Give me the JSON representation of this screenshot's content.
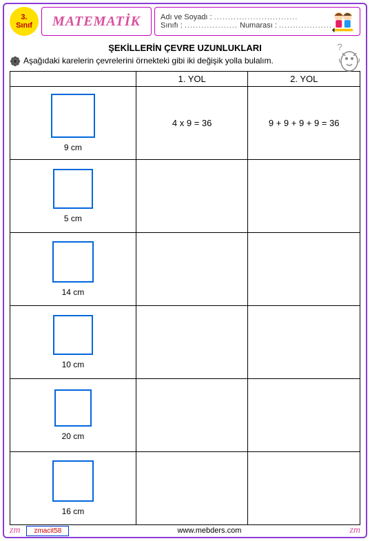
{
  "header": {
    "grade_line1": "3.",
    "grade_line2": "Sınıf",
    "subject": "MATEMATİK",
    "name_label": "Adı ve Soyadı : ",
    "name_dots": "..............................",
    "class_label": "Sınıfı : ",
    "class_dots": "...................",
    "number_label": " Numarası : ",
    "number_dots": "..................."
  },
  "worksheet": {
    "title": "ŞEKİLLERİN ÇEVRE UZUNLUKLARI",
    "instruction": "Aşağıdaki  karelerin çevrelerini örnekteki gibi  iki değişik yolla bulalım.",
    "col_shape": "",
    "col_yol1": "1. YOL",
    "col_yol2": "2. YOL",
    "rows": [
      {
        "side": "9 cm",
        "sq_size": 64,
        "yol1": "4 x 9 = 36",
        "yol2": "9 + 9 + 9 + 9 = 36"
      },
      {
        "side": "5 cm",
        "sq_size": 58,
        "yol1": "",
        "yol2": ""
      },
      {
        "side": "14 cm",
        "sq_size": 60,
        "yol1": "",
        "yol2": ""
      },
      {
        "side": "10 cm",
        "sq_size": 58,
        "yol1": "",
        "yol2": ""
      },
      {
        "side": "20 cm",
        "sq_size": 54,
        "yol1": "",
        "yol2": ""
      },
      {
        "side": "16 cm",
        "sq_size": 60,
        "yol1": "",
        "yol2": ""
      }
    ]
  },
  "footer": {
    "zm": "zm",
    "code": "zmacit58",
    "site": "www.mebders.com"
  },
  "colors": {
    "square_border": "#0066dd",
    "page_border": "#8a3ad6",
    "badge_bg": "#ffe000",
    "subject_text": "#d94f9e"
  }
}
